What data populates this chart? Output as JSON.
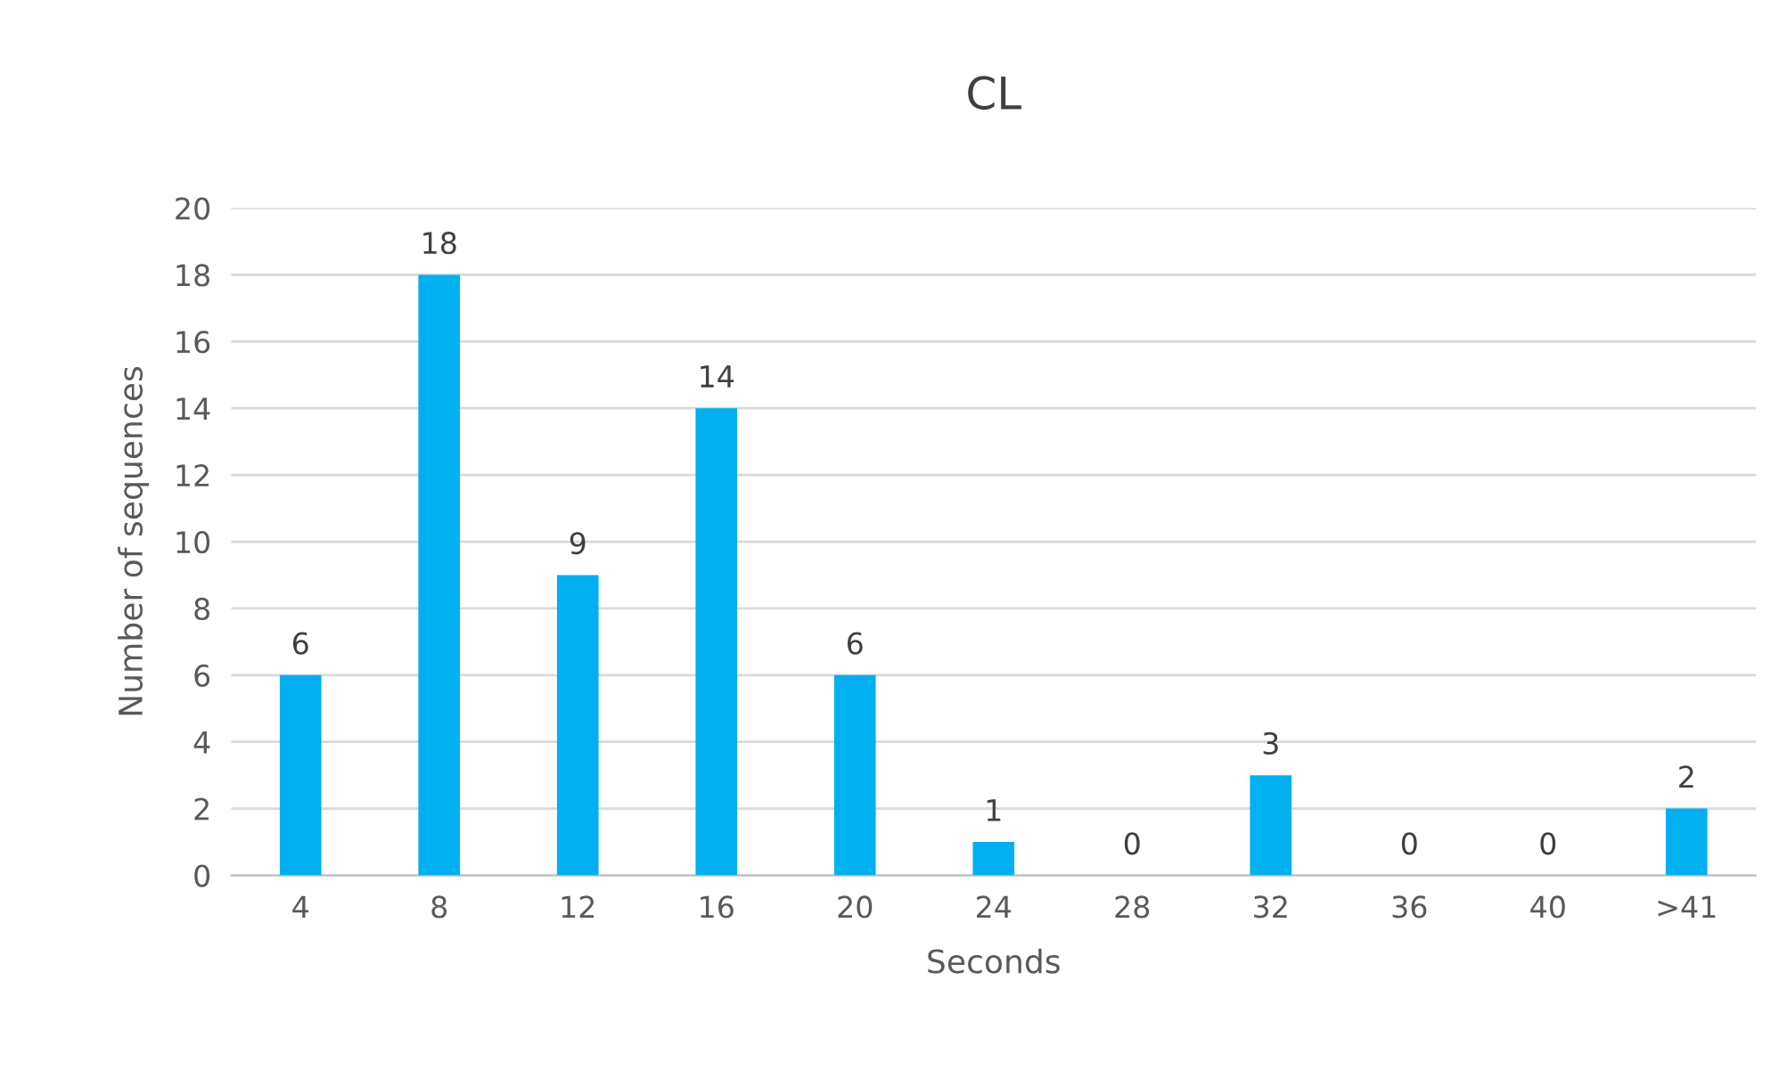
{
  "chart_data": {
    "type": "bar",
    "title": "CL",
    "xlabel": "Seconds",
    "ylabel": "Number of sequences",
    "categories": [
      "4",
      "8",
      "12",
      "16",
      "20",
      "24",
      "28",
      "32",
      "36",
      "40",
      ">41"
    ],
    "values": [
      6,
      18,
      9,
      14,
      6,
      1,
      0,
      3,
      0,
      0,
      2
    ],
    "color": "#00b0f0",
    "ylim": [
      0,
      20
    ],
    "yticks": [
      0,
      2,
      4,
      6,
      8,
      10,
      12,
      14,
      16,
      18,
      20
    ],
    "grid": "y",
    "data_labels": true
  }
}
